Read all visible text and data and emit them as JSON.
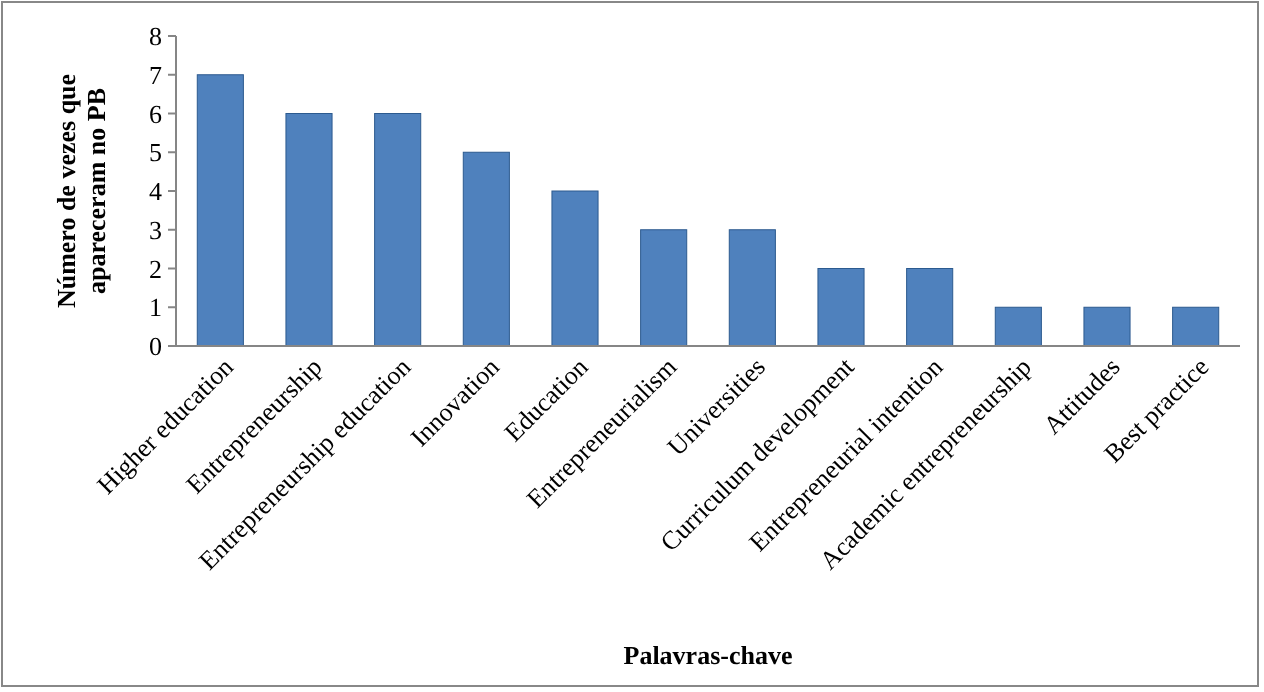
{
  "chart_data": {
    "type": "bar",
    "xlabel": "Palavras-chave",
    "ylabel": "Número de vezes que apareceram no PB",
    "categories": [
      "Higher education",
      "Entrepreneurship",
      "Entrepreneurship education",
      "Innovation",
      "Education",
      "Entrepreneurialism",
      "Universities",
      "Curriculum development",
      "Entrepreneurial intention",
      "Academic entrepreneurship",
      "Attitudes",
      "Best practice"
    ],
    "values": [
      7,
      6,
      6,
      5,
      4,
      3,
      3,
      2,
      2,
      1,
      1,
      1
    ],
    "color": "#4f81bd",
    "ylim": [
      0,
      8
    ],
    "yticks": [
      0,
      1,
      2,
      3,
      4,
      5,
      6,
      7,
      8
    ],
    "grid": false
  }
}
